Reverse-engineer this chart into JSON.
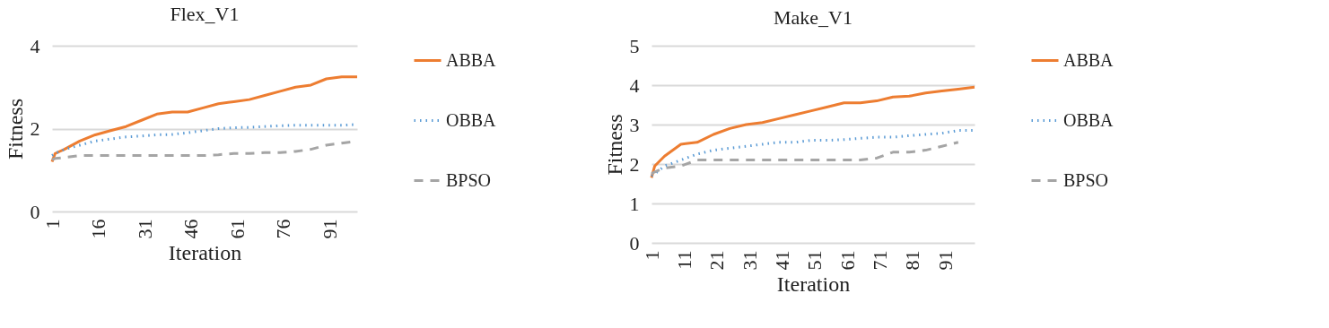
{
  "chart_data": [
    {
      "type": "line",
      "title": "Flex_V1",
      "xlabel": "Iteration",
      "ylabel": "Fitness",
      "x": [
        1,
        2,
        5,
        10,
        15,
        20,
        25,
        30,
        35,
        40,
        45,
        50,
        55,
        60,
        65,
        70,
        75,
        80,
        85,
        90,
        95,
        100
      ],
      "xlim": [
        1,
        100
      ],
      "xticks": [
        1,
        16,
        31,
        46,
        61,
        76,
        91
      ],
      "ylim": [
        0,
        4
      ],
      "yticks": [
        0,
        2,
        4
      ],
      "grid": "y",
      "legend": "right",
      "series": [
        {
          "name": "ABBA",
          "color": "#ed7d31",
          "line_style": "solid",
          "values": [
            1.2,
            1.4,
            1.5,
            1.7,
            1.85,
            1.95,
            2.05,
            2.2,
            2.35,
            2.4,
            2.4,
            2.5,
            2.6,
            2.65,
            2.7,
            2.8,
            2.9,
            3.0,
            3.05,
            3.2,
            3.25,
            3.25
          ]
        },
        {
          "name": "OBBA",
          "color": "#5b9bd5",
          "line_style": "dotted",
          "values": [
            1.35,
            1.4,
            1.5,
            1.6,
            1.7,
            1.75,
            1.8,
            1.82,
            1.85,
            1.86,
            1.9,
            1.95,
            2.0,
            2.02,
            2.03,
            2.05,
            2.07,
            2.08,
            2.08,
            2.08,
            2.08,
            2.1
          ]
        },
        {
          "name": "BPSO",
          "color": "#a5a5a5",
          "line_style": "dashed",
          "values": [
            1.25,
            1.28,
            1.3,
            1.35,
            1.35,
            1.35,
            1.35,
            1.35,
            1.35,
            1.35,
            1.35,
            1.35,
            1.37,
            1.4,
            1.4,
            1.42,
            1.42,
            1.45,
            1.5,
            1.6,
            1.65,
            1.7
          ]
        }
      ]
    },
    {
      "type": "line",
      "title": "Make_V1",
      "xlabel": "Iteration",
      "ylabel": "Fitness",
      "x": [
        1,
        2,
        5,
        10,
        15,
        20,
        25,
        30,
        35,
        40,
        45,
        50,
        55,
        60,
        65,
        70,
        75,
        80,
        85,
        90,
        95,
        100
      ],
      "xlim": [
        1,
        100
      ],
      "xticks": [
        1,
        11,
        21,
        31,
        41,
        51,
        61,
        71,
        81,
        91
      ],
      "ylim": [
        0,
        5
      ],
      "yticks": [
        0,
        1,
        2,
        3,
        4,
        5
      ],
      "grid": "y",
      "legend": "right",
      "series": [
        {
          "name": "ABBA",
          "color": "#ed7d31",
          "line_style": "solid",
          "values": [
            1.65,
            1.95,
            2.2,
            2.5,
            2.55,
            2.75,
            2.9,
            3.0,
            3.05,
            3.15,
            3.25,
            3.35,
            3.45,
            3.55,
            3.55,
            3.6,
            3.7,
            3.72,
            3.8,
            3.85,
            3.9,
            3.95
          ]
        },
        {
          "name": "OBBA",
          "color": "#5b9bd5",
          "line_style": "dotted",
          "values": [
            1.7,
            1.75,
            1.95,
            2.1,
            2.25,
            2.35,
            2.4,
            2.45,
            2.5,
            2.55,
            2.55,
            2.6,
            2.6,
            2.62,
            2.65,
            2.68,
            2.68,
            2.72,
            2.75,
            2.78,
            2.85,
            2.85
          ]
        },
        {
          "name": "BPSO",
          "color": "#a5a5a5",
          "line_style": "dashed",
          "values": [
            1.75,
            1.8,
            1.9,
            1.95,
            2.1,
            2.1,
            2.1,
            2.1,
            2.1,
            2.1,
            2.1,
            2.1,
            2.1,
            2.1,
            2.1,
            2.15,
            2.3,
            2.3,
            2.35,
            2.45,
            2.55,
            null
          ]
        }
      ]
    }
  ]
}
